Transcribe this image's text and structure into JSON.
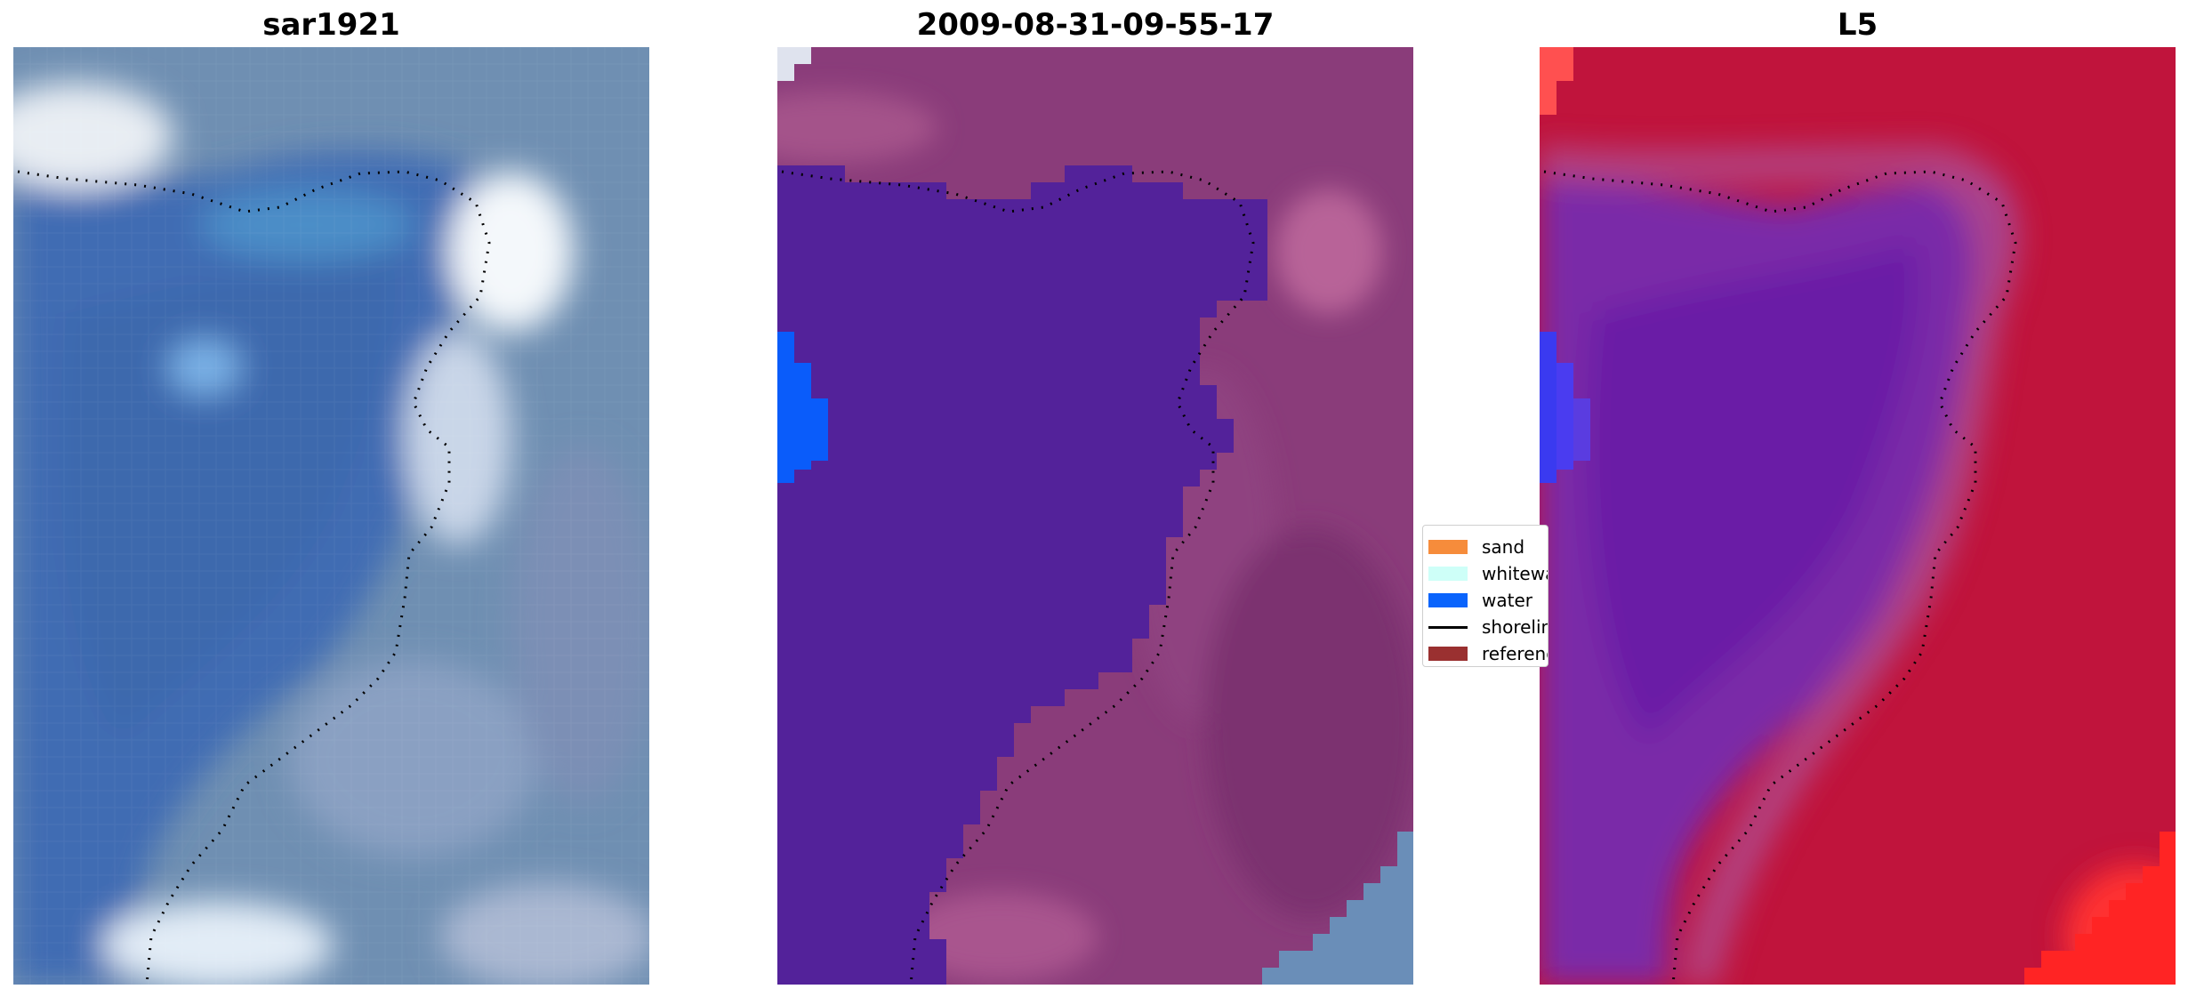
{
  "panels": [
    {
      "title": "sar1921"
    },
    {
      "title": "2009-08-31-09-55-17"
    },
    {
      "title": "L5"
    }
  ],
  "legend": {
    "items": [
      {
        "label": "sand",
        "color": "#f68c3b",
        "kind": "patch"
      },
      {
        "label": "whitewater",
        "color": "#cefff8",
        "kind": "patch"
      },
      {
        "label": "water",
        "color": "#0a64fc",
        "kind": "patch"
      },
      {
        "label": "shoreline",
        "color": "#000000",
        "kind": "line"
      },
      {
        "label": "reference",
        "color": "#9a3030",
        "kind": "patch"
      }
    ]
  },
  "colors": {
    "rgb_water": "#3f6fb0",
    "rgb_surf": "#e8f4f8",
    "classified_water": "#53229a",
    "classified_land": "#8a3c7a",
    "index_water": "#7a2aa8",
    "index_land": "#c0143c"
  }
}
